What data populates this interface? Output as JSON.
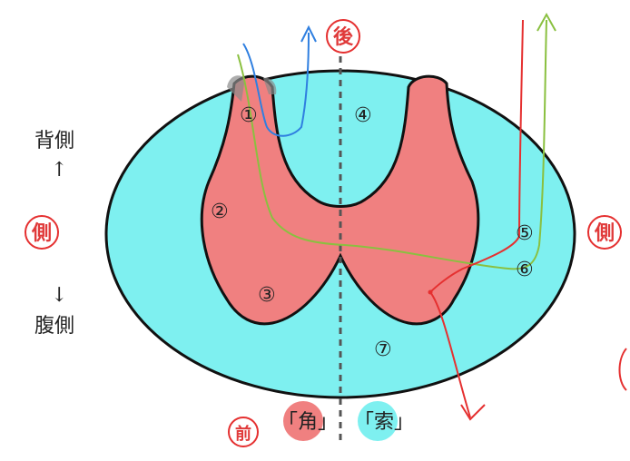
{
  "annotations": {
    "top": "後",
    "left": "側",
    "right": "側",
    "bottom": "前"
  },
  "side_labels": {
    "dorsal": "背側",
    "up_arrow": "↑",
    "down_arrow": "↓",
    "ventral": "腹側"
  },
  "regions": [
    "①",
    "②",
    "③",
    "④",
    "⑤",
    "⑥",
    "⑦"
  ],
  "legend": {
    "horn": "「角」",
    "funiculus": "「索」"
  },
  "colors": {
    "white_matter": "#7ef0f0",
    "gray_matter": "#f08080",
    "outline": "#111111",
    "red_pen": "#e53030",
    "blue_pen": "#2f7fe0",
    "green_pen": "#8ac040",
    "midline": "#555555"
  }
}
